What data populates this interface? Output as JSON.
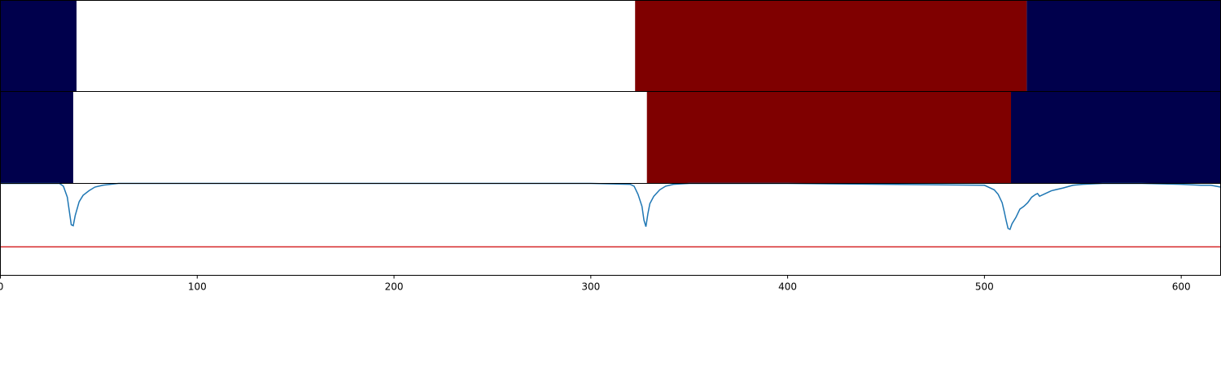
{
  "chart_data": {
    "type": "segmentation-timeline",
    "title": "",
    "xlabel": "",
    "ylabel": "",
    "xlim": [
      0,
      620
    ],
    "x_ticks": [
      0,
      100,
      200,
      300,
      400,
      500,
      600
    ],
    "x_tick_labels": [
      "0",
      "100",
      "200",
      "300",
      "400",
      "500",
      "600"
    ],
    "segment_colors": {
      "dark_blue": "#00004c",
      "white": "#ffffff",
      "dark_red": "#7f0000"
    },
    "rows": [
      {
        "segments": [
          {
            "start": 0,
            "end": 38.7,
            "color": "dark_blue"
          },
          {
            "start": 38.7,
            "end": 322.5,
            "color": "white"
          },
          {
            "start": 322.5,
            "end": 521.5,
            "color": "dark_red"
          },
          {
            "start": 521.5,
            "end": 620,
            "color": "dark_blue"
          }
        ]
      },
      {
        "segments": [
          {
            "start": 0,
            "end": 37,
            "color": "dark_blue"
          },
          {
            "start": 37,
            "end": 328.5,
            "color": "white"
          },
          {
            "start": 328.5,
            "end": 513.5,
            "color": "dark_red"
          },
          {
            "start": 513.5,
            "end": 620,
            "color": "dark_blue"
          }
        ]
      }
    ],
    "line_panel": {
      "ylim": [
        0,
        1
      ],
      "threshold": 0.31,
      "threshold_color": "#d62728",
      "line_color": "#1f77b4",
      "series": {
        "x": [
          0,
          30,
          32,
          34,
          35,
          36,
          37,
          38,
          40,
          42,
          45,
          48,
          52,
          60,
          100,
          200,
          300,
          320,
          322,
          324,
          326,
          327,
          328,
          329,
          330,
          332,
          335,
          338,
          342,
          350,
          400,
          500,
          505,
          507,
          509,
          510,
          511,
          512,
          513,
          514,
          516,
          518,
          520,
          522,
          524,
          526,
          527,
          528,
          530,
          532,
          534,
          536,
          538,
          540,
          545,
          550,
          560,
          580,
          600,
          610,
          615,
          620
        ],
        "y": [
          1.0,
          1.0,
          0.97,
          0.85,
          0.7,
          0.55,
          0.54,
          0.65,
          0.8,
          0.87,
          0.92,
          0.96,
          0.98,
          1.0,
          1.0,
          1.0,
          1.0,
          0.99,
          0.97,
          0.88,
          0.75,
          0.6,
          0.53,
          0.67,
          0.78,
          0.86,
          0.93,
          0.97,
          0.99,
          1.0,
          1.0,
          0.98,
          0.93,
          0.88,
          0.79,
          0.7,
          0.6,
          0.51,
          0.5,
          0.56,
          0.63,
          0.72,
          0.75,
          0.79,
          0.85,
          0.88,
          0.89,
          0.86,
          0.88,
          0.9,
          0.92,
          0.93,
          0.94,
          0.95,
          0.98,
          0.99,
          1.0,
          1.0,
          0.99,
          0.98,
          0.98,
          0.96
        ]
      }
    }
  }
}
